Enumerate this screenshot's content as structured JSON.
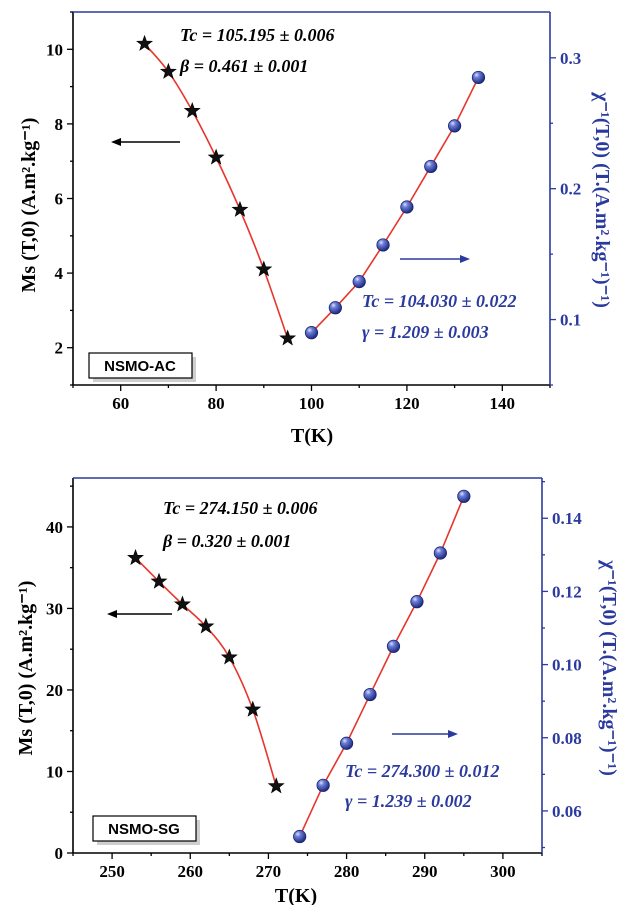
{
  "chart_data": [
    {
      "type": "scatter",
      "panel": "NSMO-AC",
      "sample_label": "NSMO-AC",
      "xlabel": "T(K)",
      "xlim": [
        50,
        150
      ],
      "xticks": [
        60,
        80,
        100,
        120,
        140
      ],
      "ylabel_left": "Ms (T,0) (A.m².kg⁻¹)",
      "ylim_left": [
        1,
        11
      ],
      "yticks_left": [
        2,
        4,
        6,
        8,
        10
      ],
      "ylabel_right": "χ⁻¹(T,0) (T.(A.m².kg⁻¹)⁻¹)",
      "ylim_right": [
        0.05,
        0.335
      ],
      "yticks_right": [
        0.1,
        0.2,
        0.3
      ],
      "series": [
        {
          "axis": "left",
          "marker": "star",
          "color": "#000000",
          "x": [
            65,
            70,
            75,
            80,
            85,
            90,
            95
          ],
          "values": [
            10.15,
            9.4,
            8.35,
            7.1,
            5.7,
            4.1,
            2.25
          ]
        },
        {
          "axis": "right",
          "marker": "sphere",
          "color": "#2b3a9e",
          "x": [
            100,
            105,
            110,
            115,
            120,
            125,
            130,
            135
          ],
          "values": [
            0.09,
            0.109,
            0.129,
            0.157,
            0.186,
            0.217,
            0.248,
            0.285
          ]
        }
      ],
      "annotations": {
        "tc_left": "Tc = 105.195 ± 0.006",
        "beta": "β = 0.461 ± 0.001",
        "tc_right": "Tc = 104.030 ± 0.022",
        "gamma": "γ = 1.209 ± 0.003"
      }
    },
    {
      "type": "scatter",
      "panel": "NSMO-SG",
      "sample_label": "NSMO-SG",
      "xlabel": "T(K)",
      "xlim": [
        245,
        305
      ],
      "xticks": [
        250,
        260,
        270,
        280,
        290,
        300
      ],
      "ylabel_left": "Ms (T,0) (A.m².kg⁻¹)",
      "ylim_left": [
        0,
        46
      ],
      "yticks_left": [
        0,
        10,
        20,
        30,
        40
      ],
      "ylabel_right": "χ⁻¹(T,0) (T.(A.m².kg⁻¹)⁻¹)",
      "ylim_right": [
        0.0485,
        0.151
      ],
      "yticks_right": [
        0.06,
        0.08,
        0.1,
        0.12,
        0.14
      ],
      "yticklabels_right": [
        "0.06",
        "0.08",
        "0.10",
        "0.12",
        "0.14"
      ],
      "series": [
        {
          "axis": "left",
          "marker": "star",
          "color": "#000000",
          "x": [
            253,
            256,
            259,
            262,
            265,
            268,
            271
          ],
          "values": [
            36.2,
            33.3,
            30.5,
            27.8,
            24.0,
            17.6,
            8.2
          ]
        },
        {
          "axis": "right",
          "marker": "sphere",
          "color": "#2b3a9e",
          "x": [
            274,
            277,
            280,
            283,
            286,
            289,
            292,
            295
          ],
          "values": [
            0.053,
            0.067,
            0.0785,
            0.0918,
            0.105,
            0.1172,
            0.1305,
            0.146
          ]
        }
      ],
      "annotations": {
        "tc_left": "Tc = 274.150 ± 0.006",
        "beta": "β = 0.320 ± 0.001",
        "tc_right": "Tc = 274.300 ± 0.012",
        "gamma": "γ = 1.239 ± 0.002"
      }
    }
  ],
  "colors": {
    "left_axis": "#000000",
    "right_axis": "#2b3a9e",
    "fit_line": "#e8352b",
    "sphere_fill": "#3a4fb8"
  }
}
